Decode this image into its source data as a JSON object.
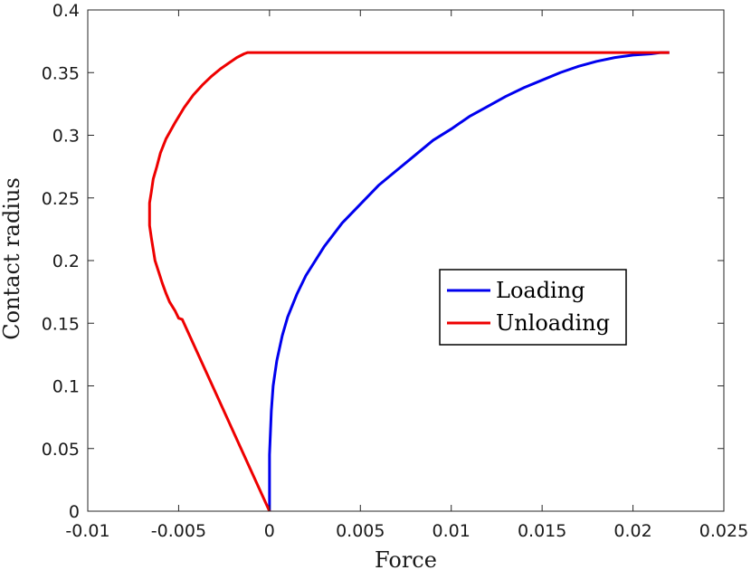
{
  "chart_data": {
    "type": "line",
    "xlabel": "Force",
    "ylabel": "Contact radius",
    "xlim": [
      -0.01,
      0.025
    ],
    "ylim": [
      0,
      0.4
    ],
    "xticks": [
      "-0.01",
      "-0.005",
      "0",
      "0.005",
      "0.01",
      "0.015",
      "0.02",
      "0.025"
    ],
    "yticks": [
      "0",
      "0.05",
      "0.1",
      "0.15",
      "0.2",
      "0.25",
      "0.3",
      "0.35",
      "0.4"
    ],
    "grid": false,
    "legend_position": "center-right",
    "series": [
      {
        "name": "Loading",
        "color": "#0000ee",
        "x": [
          0,
          0,
          0.0001,
          0.0002,
          0.0004,
          0.0007,
          0.001,
          0.0015,
          0.002,
          0.003,
          0.004,
          0.005,
          0.006,
          0.007,
          0.008,
          0.009,
          0.01,
          0.011,
          0.012,
          0.013,
          0.014,
          0.015,
          0.016,
          0.017,
          0.018,
          0.019,
          0.02,
          0.021,
          0.0215,
          0.022
        ],
        "y": [
          0,
          0.045,
          0.08,
          0.1,
          0.12,
          0.14,
          0.155,
          0.173,
          0.188,
          0.211,
          0.23,
          0.245,
          0.26,
          0.272,
          0.284,
          0.296,
          0.305,
          0.315,
          0.323,
          0.331,
          0.338,
          0.344,
          0.35,
          0.355,
          0.359,
          0.362,
          0.364,
          0.365,
          0.366,
          0.366
        ]
      },
      {
        "name": "Unloading",
        "color": "#ee0000",
        "x": [
          0.022,
          -0.0012,
          -0.0014,
          -0.0018,
          -0.0022,
          -0.0027,
          -0.0032,
          -0.0037,
          -0.0042,
          -0.0047,
          -0.0052,
          -0.0057,
          -0.006,
          -0.0062,
          -0.0064,
          -0.0065,
          -0.0066,
          -0.0066,
          -0.0066,
          -0.0065,
          -0.0064,
          -0.0063,
          -0.0061,
          -0.0059,
          -0.0057,
          -0.0055,
          -0.0052,
          -0.005,
          -0.0048,
          0
        ],
        "y": [
          0.366,
          0.366,
          0.365,
          0.362,
          0.358,
          0.353,
          0.347,
          0.34,
          0.332,
          0.322,
          0.31,
          0.297,
          0.286,
          0.275,
          0.265,
          0.255,
          0.246,
          0.237,
          0.228,
          0.218,
          0.209,
          0.2,
          0.191,
          0.182,
          0.174,
          0.167,
          0.16,
          0.154,
          0.153,
          0
        ]
      }
    ]
  }
}
